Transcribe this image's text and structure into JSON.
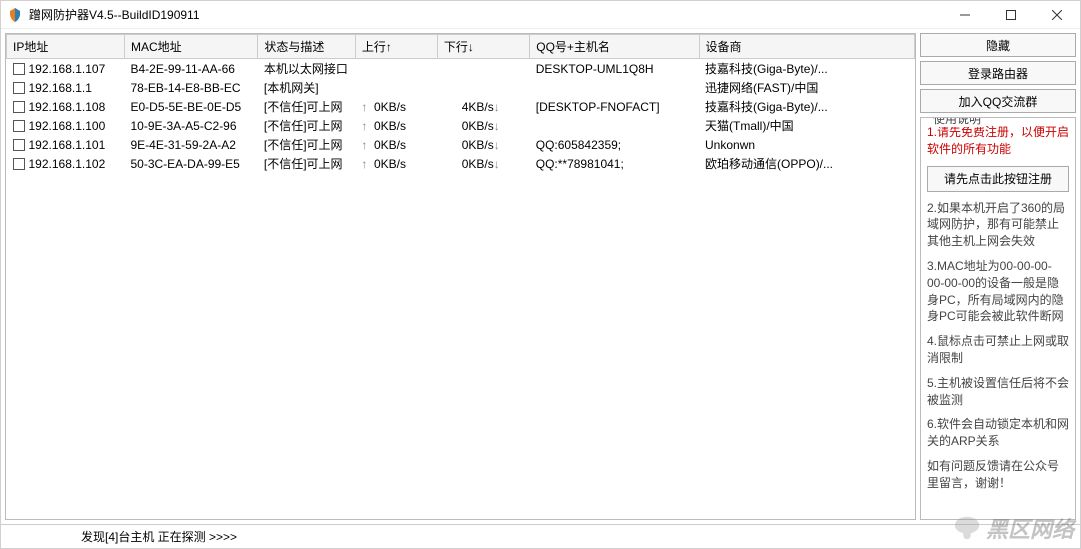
{
  "window": {
    "title": "蹭网防护器V4.5--BuildID190911"
  },
  "columns": {
    "ip": "IP地址",
    "mac": "MAC地址",
    "status": "状态与描述",
    "up": "上行↑",
    "down": "下行↓",
    "qq": "QQ号+主机名",
    "vendor": "设备商"
  },
  "col_widths": {
    "ip": 115,
    "mac": 130,
    "status": 95,
    "up": 80,
    "down": 90,
    "qq": 165,
    "vendor": 210
  },
  "rows": [
    {
      "ip": "192.168.1.107",
      "mac": "B4-2E-99-11-AA-66",
      "status": "本机以太网接口",
      "up": "",
      "up_arrow": "",
      "down": "",
      "down_arrow": "",
      "qq": "DESKTOP-UML1Q8H",
      "vendor": "技嘉科技(Giga-Byte)/..."
    },
    {
      "ip": "192.168.1.1",
      "mac": "78-EB-14-E8-BB-EC",
      "status": "[本机网关]",
      "up": "",
      "up_arrow": "",
      "down": "",
      "down_arrow": "",
      "qq": "",
      "vendor": "迅捷网络(FAST)/中国"
    },
    {
      "ip": "192.168.1.108",
      "mac": "E0-D5-5E-BE-0E-D5",
      "status": "[不信任]可上网",
      "up": "0KB/s",
      "up_arrow": "↑",
      "down": "4KB/s",
      "down_arrow": "↓",
      "qq": "[DESKTOP-FNOFACT]",
      "vendor": "技嘉科技(Giga-Byte)/..."
    },
    {
      "ip": "192.168.1.100",
      "mac": "10-9E-3A-A5-C2-96",
      "status": "[不信任]可上网",
      "up": "0KB/s",
      "up_arrow": "↑",
      "down": "0KB/s",
      "down_arrow": "↓",
      "qq": "",
      "vendor": "天猫(Tmall)/中国"
    },
    {
      "ip": "192.168.1.101",
      "mac": "9E-4E-31-59-2A-A2",
      "status": "[不信任]可上网",
      "up": "0KB/s",
      "up_arrow": "↑",
      "down": "0KB/s",
      "down_arrow": "↓",
      "qq": "QQ:605842359;",
      "vendor": "Unkonwn"
    },
    {
      "ip": "192.168.1.102",
      "mac": "50-3C-EA-DA-99-E5",
      "status": "[不信任]可上网",
      "up": "0KB/s",
      "up_arrow": "↑",
      "down": "0KB/s",
      "down_arrow": "↓",
      "qq": "QQ:**78981041;",
      "vendor": "欧珀移动通信(OPPO)/..."
    }
  ],
  "statusbar": "发现[4]台主机  正在探测 >>>>",
  "buttons": {
    "hide": "隐藏",
    "login_router": "登录路由器",
    "join_qq": "加入QQ交流群",
    "register": "请先点击此按钮注册"
  },
  "panel": {
    "title": "使用说明",
    "notice_red": "1.请先免费注册，以便开启软件的所有功能",
    "notes": [
      "2.如果本机开启了360的局域网防护，那有可能禁止其他主机上网会失效",
      "3.MAC地址为00-00-00-00-00-00的设备一般是隐身PC，所有局域网内的隐身PC可能会被此软件断网",
      "4.鼠标点击可禁止上网或取消限制",
      "5.主机被设置信任后将不会被监测",
      "6.软件会自动锁定本机和网关的ARP关系",
      "如有问题反馈请在公众号里留言，谢谢！"
    ]
  },
  "watermark": "黑区网络"
}
